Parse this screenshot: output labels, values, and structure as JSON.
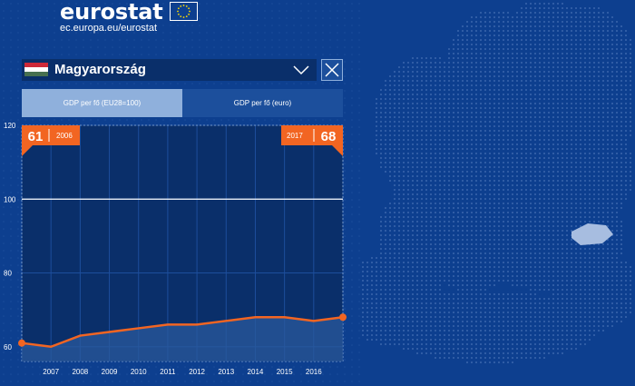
{
  "header": {
    "logo_text": "eurostat",
    "logo_url": "ec.europa.eu/eurostat"
  },
  "country_selector": {
    "selected": "Magyarország",
    "flag_colors": [
      "#ce2939",
      "#ffffff",
      "#477050"
    ]
  },
  "tabs": [
    {
      "label": "GDP per  fő  (EU28=100)",
      "active": true
    },
    {
      "label": "GDP per  fő  (euro)",
      "active": false
    }
  ],
  "colors": {
    "background": "#0d3f8f",
    "accent": "#f26522",
    "tab_active": "#8fb0dc"
  },
  "badges": {
    "start": {
      "value": "61",
      "year": "2006"
    },
    "end": {
      "year": "2017",
      "value": "68"
    }
  },
  "chart_data": {
    "type": "line",
    "x": [
      2006,
      2007,
      2008,
      2009,
      2010,
      2011,
      2012,
      2013,
      2014,
      2015,
      2016,
      2017
    ],
    "xticks": [
      "2007",
      "2008",
      "2009",
      "2010",
      "2011",
      "2012",
      "2013",
      "2014",
      "2015",
      "2016"
    ],
    "values": [
      61,
      60,
      63,
      64,
      65,
      66,
      66,
      67,
      68,
      68,
      67,
      68
    ],
    "yticks": [
      "60",
      "80",
      "100",
      "120"
    ],
    "ylim": [
      56,
      120
    ],
    "reference_line": 100,
    "grid": true
  }
}
